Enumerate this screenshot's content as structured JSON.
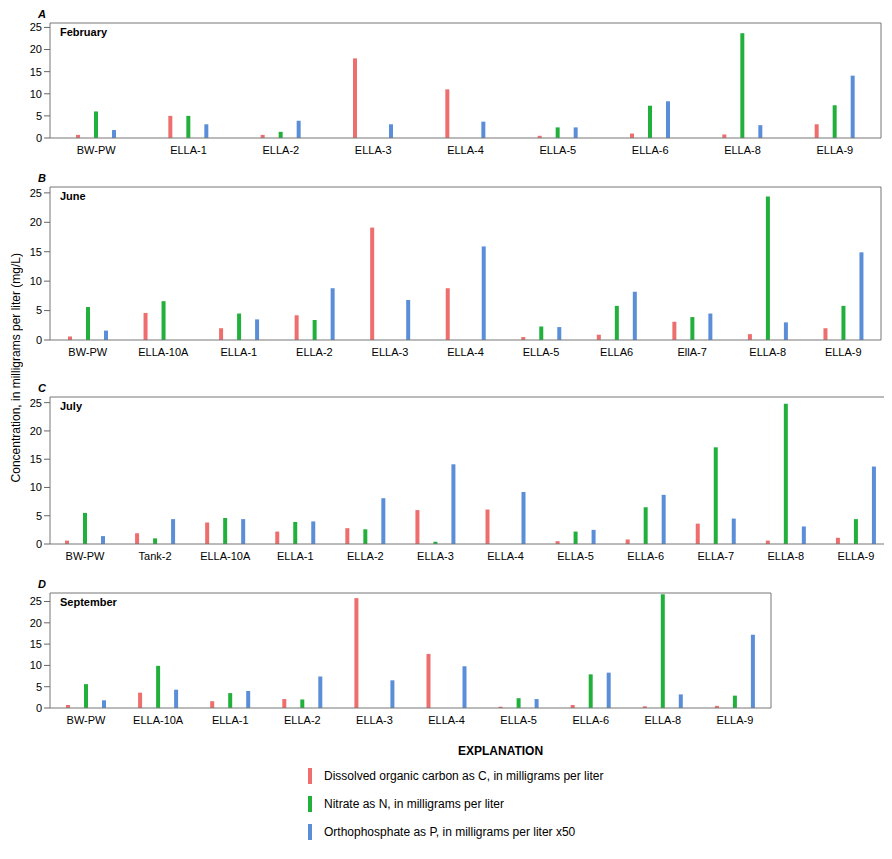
{
  "y_label": "Concentration, in milligrams per liter (mg/L)",
  "legend_title": "EXPLANATION",
  "chart_data": [
    {
      "type": "bar",
      "panel_label": "A",
      "title": "February",
      "grid": false,
      "categories": [
        "BW-PW",
        "ELLA-1",
        "ELLA-2",
        "ELLA-3",
        "ELLA-4",
        "ELLA-5",
        "ELLA-6",
        "ELLA-8",
        "ELLA-9"
      ],
      "ylim": [
        0,
        26
      ],
      "yticks": [
        0,
        5,
        10,
        15,
        20,
        25
      ],
      "series": [
        {
          "name": "Dissolved organic carbon as C, in milligrams per liter",
          "color": "#ee6e6e",
          "values": [
            0.7,
            5,
            0.7,
            18,
            11,
            0.5,
            1,
            0.8,
            3.1
          ]
        },
        {
          "name": "Nitrate as N, in milligrams per liter",
          "color": "#22b03c",
          "values": [
            6,
            5,
            1.4,
            null,
            null,
            2.4,
            7.3,
            23.7,
            7.4
          ]
        },
        {
          "name": "Orthophosphate as P, in milligrams per liter x50",
          "color": "#5b8ed8",
          "values": [
            1.8,
            3.1,
            3.9,
            3.1,
            3.7,
            2.4,
            8.3,
            2.9,
            14.1
          ]
        }
      ]
    },
    {
      "type": "bar",
      "panel_label": "B",
      "title": "June",
      "grid": false,
      "categories": [
        "BW-PW",
        "ELLA-10A",
        "ELLA-1",
        "ELLA-2",
        "ELLA-3",
        "ELLA-4",
        "ELLA-5",
        "ELLA6",
        "EllA-7",
        "ELLA-8",
        "ELLA-9"
      ],
      "ylim": [
        0,
        26
      ],
      "yticks": [
        0,
        5,
        10,
        15,
        20,
        25
      ],
      "series": [
        {
          "name": "Dissolved organic carbon as C, in milligrams per liter",
          "color": "#ee6e6e",
          "values": [
            0.6,
            4.6,
            2.0,
            4.2,
            19.1,
            8.8,
            0.5,
            0.9,
            3.1,
            1.0,
            2.0
          ]
        },
        {
          "name": "Nitrate as N, in milligrams per liter",
          "color": "#22b03c",
          "values": [
            5.6,
            6.6,
            4.5,
            3.4,
            null,
            null,
            2.3,
            5.8,
            3.9,
            24.4,
            5.8
          ]
        },
        {
          "name": "Orthophosphate as P, in milligrams per liter x50",
          "color": "#5b8ed8",
          "values": [
            1.6,
            null,
            3.5,
            8.8,
            6.8,
            15.9,
            2.2,
            8.2,
            4.5,
            3.0,
            14.9
          ]
        }
      ]
    },
    {
      "type": "bar",
      "panel_label": "C",
      "title": "July",
      "grid": false,
      "categories": [
        "BW-PW",
        "Tank-2",
        "ELLA-10A",
        "ELLA-1",
        "ELLA-2",
        "ELLA-3",
        "ELLA-4",
        "ELLA-5",
        "ELLA-6",
        "ELLA-7",
        "ELLA-8",
        "ELLA-9"
      ],
      "ylim": [
        0,
        26
      ],
      "yticks": [
        0,
        5,
        10,
        15,
        20,
        25
      ],
      "series": [
        {
          "name": "Dissolved organic carbon as C, in milligrams per liter",
          "color": "#ee6e6e",
          "values": [
            0.6,
            1.9,
            3.8,
            2.2,
            2.8,
            6.0,
            6.1,
            0.5,
            0.8,
            3.6,
            0.6,
            1.1
          ]
        },
        {
          "name": "Nitrate as N, in milligrams per liter",
          "color": "#22b03c",
          "values": [
            5.5,
            1.0,
            4.6,
            3.9,
            2.6,
            0.4,
            null,
            2.2,
            6.5,
            17.1,
            24.8,
            4.4
          ]
        },
        {
          "name": "Orthophosphate as P, in milligrams per liter x50",
          "color": "#5b8ed8",
          "values": [
            1.4,
            4.4,
            4.4,
            4.0,
            8.1,
            14.1,
            9.2,
            2.5,
            8.7,
            4.5,
            3.1,
            13.7
          ]
        }
      ]
    },
    {
      "type": "bar",
      "panel_label": "D",
      "title": "September",
      "grid": false,
      "categories": [
        "BW-PW",
        "ELLA-10A",
        "ELLA-1",
        "ELLA-2",
        "ELLA-3",
        "ELLA-4",
        "ELLA-5",
        "ELLA-6",
        "ELLA-8",
        "ELLA-9"
      ],
      "ylim": [
        0,
        27
      ],
      "yticks": [
        0,
        5,
        10,
        15,
        20,
        25
      ],
      "series": [
        {
          "name": "Dissolved organic carbon as C, in milligrams per liter",
          "color": "#ee6e6e",
          "values": [
            0.7,
            3.6,
            1.6,
            2.1,
            25.8,
            12.7,
            0.3,
            0.7,
            0.4,
            0.5
          ]
        },
        {
          "name": "Nitrate as N, in milligrams per liter",
          "color": "#22b03c",
          "values": [
            5.6,
            9.9,
            3.5,
            2.0,
            null,
            null,
            2.3,
            7.9,
            26.7,
            2.9
          ]
        },
        {
          "name": "Orthophosphate as P, in milligrams per liter x50",
          "color": "#5b8ed8",
          "values": [
            1.8,
            4.3,
            4.0,
            7.4,
            6.5,
            9.8,
            2.1,
            8.3,
            3.2,
            17.2
          ]
        }
      ]
    }
  ]
}
